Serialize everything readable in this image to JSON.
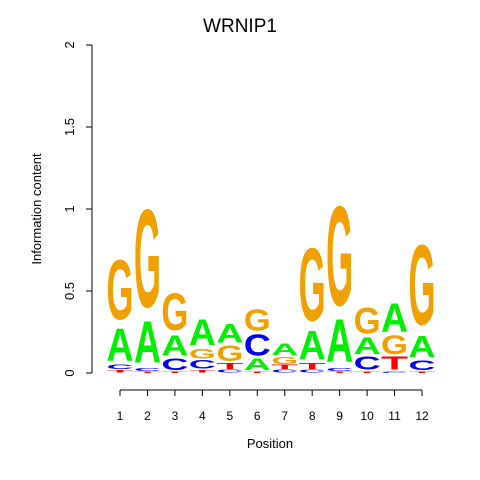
{
  "chart_data": {
    "type": "sequence-logo",
    "title": "WRNIP1",
    "xlabel": "Position",
    "ylabel": "Information content",
    "ylim": [
      0,
      2
    ],
    "yticks": [
      0,
      0.5,
      1,
      1.5,
      2
    ],
    "ytick_labels": [
      "0",
      "0.5",
      "1",
      "1.5",
      "2"
    ],
    "positions": [
      "1",
      "2",
      "3",
      "4",
      "5",
      "6",
      "7",
      "8",
      "9",
      "10",
      "11",
      "12"
    ],
    "colors": {
      "A": "#00ee00",
      "C": "#0000ee",
      "G": "#f0a000",
      "T": "#ff0000"
    },
    "stacks": [
      [
        {
          "letter": "T",
          "height": 0.02
        },
        {
          "letter": "C",
          "height": 0.03
        },
        {
          "letter": "A",
          "height": 0.23
        },
        {
          "letter": "G",
          "height": 0.42
        }
      ],
      [
        {
          "letter": "T",
          "height": 0.01
        },
        {
          "letter": "C",
          "height": 0.02
        },
        {
          "letter": "A",
          "height": 0.29
        },
        {
          "letter": "G",
          "height": 0.69
        }
      ],
      [
        {
          "letter": "T",
          "height": 0.01
        },
        {
          "letter": "C",
          "height": 0.08
        },
        {
          "letter": "A",
          "height": 0.14
        },
        {
          "letter": "G",
          "height": 0.26
        }
      ],
      [
        {
          "letter": "T",
          "height": 0.02
        },
        {
          "letter": "C",
          "height": 0.06
        },
        {
          "letter": "G",
          "height": 0.07
        },
        {
          "letter": "A",
          "height": 0.18
        }
      ],
      [
        {
          "letter": "C",
          "height": 0.02
        },
        {
          "letter": "T",
          "height": 0.04
        },
        {
          "letter": "G",
          "height": 0.11
        },
        {
          "letter": "A",
          "height": 0.13
        }
      ],
      [
        {
          "letter": "T",
          "height": 0.01
        },
        {
          "letter": "A",
          "height": 0.08
        },
        {
          "letter": "C",
          "height": 0.15
        },
        {
          "letter": "G",
          "height": 0.15
        }
      ],
      [
        {
          "letter": "C",
          "height": 0.02
        },
        {
          "letter": "T",
          "height": 0.03
        },
        {
          "letter": "G",
          "height": 0.05
        },
        {
          "letter": "A",
          "height": 0.08
        }
      ],
      [
        {
          "letter": "C",
          "height": 0.02
        },
        {
          "letter": "T",
          "height": 0.04
        },
        {
          "letter": "A",
          "height": 0.2
        },
        {
          "letter": "G",
          "height": 0.51
        }
      ],
      [
        {
          "letter": "T",
          "height": 0.01
        },
        {
          "letter": "C",
          "height": 0.02
        },
        {
          "letter": "A",
          "height": 0.3
        },
        {
          "letter": "G",
          "height": 0.7
        }
      ],
      [
        {
          "letter": "T",
          "height": 0.01
        },
        {
          "letter": "C",
          "height": 0.09
        },
        {
          "letter": "A",
          "height": 0.12
        },
        {
          "letter": "G",
          "height": 0.18
        }
      ],
      [
        {
          "letter": "C",
          "height": 0.01
        },
        {
          "letter": "T",
          "height": 0.09
        },
        {
          "letter": "G",
          "height": 0.13
        },
        {
          "letter": "A",
          "height": 0.2
        }
      ],
      [
        {
          "letter": "T",
          "height": 0.01
        },
        {
          "letter": "C",
          "height": 0.07
        },
        {
          "letter": "A",
          "height": 0.15
        },
        {
          "letter": "G",
          "height": 0.56
        }
      ]
    ]
  }
}
